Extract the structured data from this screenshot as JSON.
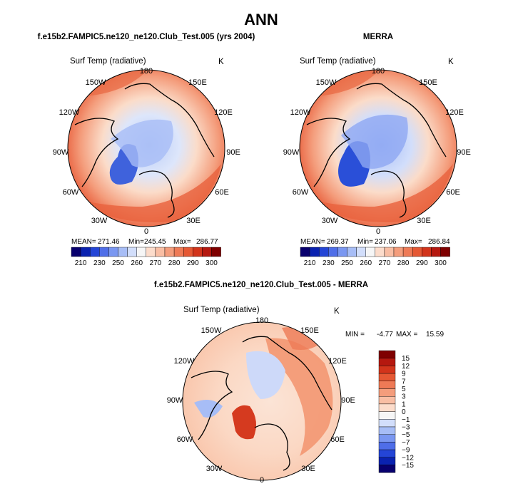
{
  "chart_data": {
    "type": "polar-map",
    "main_title": "ANN",
    "panels": [
      {
        "id": "model",
        "title": "f.e15b2.FAMPIC5.ne120_ne120.Club_Test.005 (yrs 2004)",
        "variable": "Surf Temp (radiative)",
        "units": "K",
        "lon_labels": [
          "180",
          "150E",
          "120E",
          "90E",
          "60E",
          "30E",
          "0",
          "30W",
          "60W",
          "90W",
          "120W",
          "150W"
        ],
        "stats": {
          "mean_label": "MEAN=",
          "mean": "271.46",
          "min_label": "Min=",
          "min": "245.45",
          "max_label": "Max=",
          "max": "286.77"
        },
        "colorbar_ticks": [
          "210",
          "230",
          "250",
          "260",
          "270",
          "280",
          "290",
          "300"
        ],
        "colors": [
          "#08006e",
          "#0a22b0",
          "#2445d6",
          "#4f6ee8",
          "#7a97f1",
          "#a7bdf6",
          "#d2defb",
          "#f6f6f6",
          "#fcdccb",
          "#f9bea4",
          "#f49d7c",
          "#ee7a56",
          "#e55834",
          "#d2341b",
          "#b5180f",
          "#7f0000"
        ]
      },
      {
        "id": "obs",
        "title": "MERRA",
        "variable": "Surf Temp (radiative)",
        "units": "K",
        "lon_labels": [
          "180",
          "150E",
          "120E",
          "90E",
          "60E",
          "30E",
          "0",
          "30W",
          "60W",
          "90W",
          "120W",
          "150W"
        ],
        "stats": {
          "mean_label": "MEAN=",
          "mean": "269.37",
          "min_label": "Min=",
          "min": "237.06",
          "max_label": "Max=",
          "max": "286.84"
        },
        "colorbar_ticks": [
          "210",
          "230",
          "250",
          "260",
          "270",
          "280",
          "290",
          "300"
        ],
        "colors": [
          "#08006e",
          "#0a22b0",
          "#2445d6",
          "#4f6ee8",
          "#7a97f1",
          "#a7bdf6",
          "#d2defb",
          "#f6f6f6",
          "#fcdccb",
          "#f9bea4",
          "#f49d7c",
          "#ee7a56",
          "#e55834",
          "#d2341b",
          "#b5180f",
          "#7f0000"
        ]
      },
      {
        "id": "diff",
        "title": "f.e15b2.FAMPIC5.ne120_ne120.Club_Test.005 - MERRA",
        "variable": "Surf Temp (radiative)",
        "units": "K",
        "lon_labels": [
          "180",
          "150E",
          "120E",
          "90E",
          "60E",
          "30E",
          "0",
          "30W",
          "60W",
          "90W",
          "120W",
          "150W"
        ],
        "stats": {
          "min_label": "MIN =",
          "min": "-4.77",
          "max_label": "MAX =",
          "max": "15.59"
        },
        "colorbar_ticks": [
          "15",
          "12",
          "9",
          "7",
          "5",
          "3",
          "1",
          "0",
          "−1",
          "−3",
          "−5",
          "−7",
          "−9",
          "−12",
          "−15"
        ],
        "colors": [
          "#7f0000",
          "#b5180f",
          "#d2341b",
          "#e55834",
          "#ee7a56",
          "#f49d7c",
          "#f9bea4",
          "#fcdccb",
          "#f6f6f6",
          "#d2defb",
          "#a7bdf6",
          "#7a97f1",
          "#4f6ee8",
          "#2445d6",
          "#0a22b0",
          "#08006e"
        ]
      }
    ]
  }
}
